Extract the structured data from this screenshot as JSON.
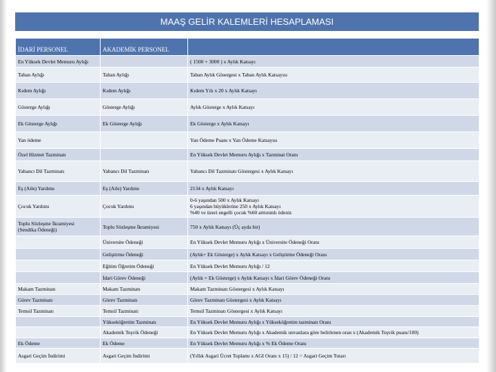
{
  "title": "MAAŞ GELİR KALEMLERİ HESAPLAMASI",
  "header": [
    "İDARİ PERSONEL",
    "AKADEMİK PERSONEL"
  ],
  "rows": [
    [
      "En Yüksek Devlet Memuru Aylığı",
      null,
      "( 1500 + 3000 ) x Aylık Katsayı"
    ],
    [
      "Taban Aylığı",
      "Taban Aylığı",
      "Taban Aylık Gösergesi x Taban Aylık Katsayısı"
    ],
    [
      "Kıdem Aylığı",
      "Kıdem Aylığı",
      "Kıdem Yılı x 20 x Aylık Katsayı"
    ],
    [
      "Gösterge Aylığı",
      "Gösterge Aylığı",
      "Aylık Gösterge x Aylık Katsayı"
    ],
    [
      "Ek Gösterge Aylığı",
      "Ek Gösterge Aylığı",
      "Ek Gösterge x Aylık Katsayı"
    ],
    [
      "Yan ödeme",
      null,
      "Yan Ödeme Puanı x Yan Ödeme Katsayısı"
    ],
    [
      "Özel Hizmet Tazminatı",
      null,
      "En Yüksek Devlet Memuru Aylığı x Tazminat Oranı"
    ],
    [
      "Yabancı Dil Tazminatı",
      "Yabancı Dil Tazminatı",
      "Yabancı Dil Tazminatı Göstergesi x Aylık Katsayı"
    ],
    [
      "Eş (Aile) Yardımı",
      "Eş (Aile) Yardımı",
      "2134 x Aylık Katsayı"
    ],
    [
      "Çocuk Yardımı",
      "Çocuk Yardımı",
      [
        "0-6 yaşından 500 x Aylık Katsayı",
        "6 yaşından büyüklerine 250 x Aylık Katsayı",
        "%40 ve üzeri engelli çocuk %60 arttırımlı ödenir."
      ]
    ],
    [
      [
        "Toplu Sözleşme İkramiyesi",
        "(Sendika Ödeneği)"
      ],
      "Toplu Sözleşme İkramiyesi",
      "750 x Aylık Katsayı (Üç ayda bir)"
    ],
    [
      null,
      "Üniversite Ödeneği",
      "En Yüksek Devlet Memuru Aylığı x Üniversite Ödeneği Oranı"
    ],
    [
      null,
      "Geliştirme Ödeneği",
      "(Aylık+ Ek Gösterge) x Aylık Katsayı x Geliştirme Ödeneği Oranı"
    ],
    [
      null,
      "Eğitim Öğretim Ödeneği",
      "En Yüksek Devlet Memuru Aylığı / 12"
    ],
    [
      null,
      "İdari Görev Ödeneği",
      "(Aylık + Ek Gösterge) x Aylık Katsayı x İdari Görev Ödeneği Oranı"
    ],
    [
      "Makam Tazminatı",
      "Makam Tazminatı",
      "Makam Tazminatı Göstergesi x Aylık Katsayı"
    ],
    [
      "Görev Tazminatı",
      "Görev Tazminatı",
      "Görev Tazminatı Göstergesi x Aylık Katsayı"
    ],
    [
      "Temsil Tazminatı",
      "Temsil Tazminatı",
      "Temsil Tazminatı Göstergesi x Aylık Katsayı"
    ],
    [
      null,
      "Yükseköğretim Tazminatı",
      "En Yüksek Devlet Memuru Aylığı x Yükseköğretim tazminatı Oranı"
    ],
    [
      null,
      "Akademik Teşvik Ödeneği",
      "En Yüksek Devlet Memuru Aylığı x Akademik unvanlara göre belirlenen oran x (Akademik Teşvik puanı/100)"
    ],
    [
      "Ek Ödeme",
      "Ek Ödeme",
      "En Yüksek Devlet Memuru Aylığı x % Ek Ödeme Oranı"
    ],
    [
      "Asgari Geçim İndirimi",
      "Asgari Geçim İndirimi",
      "(Yıllık Asgari Ücret Toplamı x AGI Oranı x 15) / 12 = Asgari Geçim Tutarı"
    ]
  ]
}
